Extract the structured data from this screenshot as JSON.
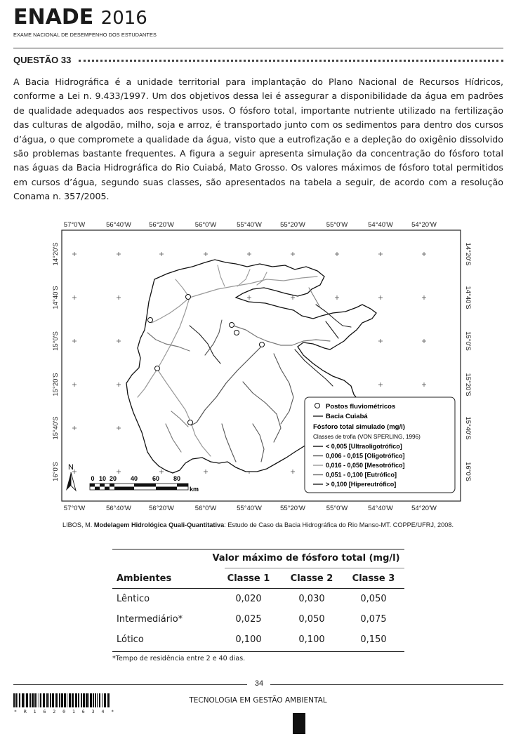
{
  "header": {
    "logo_main": "ENADE",
    "logo_year": "2016",
    "logo_subtitle": "EXAME NACIONAL DE DESEMPENHO DOS ESTUDANTES"
  },
  "question": {
    "title": "QUESTÃO 33",
    "paragraph": "A Bacia Hidrográfica é a unidade territorial para implantação do Plano Nacional de Recursos Hídricos, conforme a Lei n. 9.433/1997. Um dos objetivos dessa lei é assegurar a disponibilidade da água em padrões de qualidade adequados aos respectivos usos. O fósforo total, importante nutriente utilizado na fertilização das culturas de algodão, milho, soja e arroz, é transportado junto com os sedimentos para dentro dos cursos d’água, o que compromete a qualidade da água, visto que a eutrofização e a depleção do oxigênio dissolvido são problemas bastante frequentes. A figura a seguir apresenta simulação da concentração do fósforo total nas águas da Bacia Hidrográfica do Rio Cuiabá, Mato Grosso. Os valores máximos de fósforo total permitidos em cursos d’água, segundo suas classes, são apresentados na tabela a seguir, de acordo com a resolução Conama n. 357/2005."
  },
  "map": {
    "lon_labels": [
      "57°0'W",
      "56°40'W",
      "56°20'W",
      "56°0'W",
      "55°40'W",
      "55°20'W",
      "55°0'W",
      "54°40'W",
      "54°20'W"
    ],
    "lat_labels": [
      "14°20'S",
      "14°40'S",
      "15°0'S",
      "15°20'S",
      "15°40'S",
      "16°0'S"
    ],
    "north_label": "N",
    "scale_labels": [
      "0",
      "10",
      "20",
      "40",
      "60",
      "80"
    ],
    "scale_unit": "km",
    "legend": {
      "stations": "Postos fluviométricos",
      "basin": "Bacia Cuiabá",
      "title": "Fósforo total simulado (mg/l)",
      "subtitle": "Classes de trofia (VON SPERLING, 1996)",
      "classes": [
        {
          "label": "< 0,005 [Ultraoligotrófico]",
          "color": "#111111"
        },
        {
          "label": "0,006 - 0,015 [Oligotrófico]",
          "color": "#555555"
        },
        {
          "label": "0,016 - 0,050 [Mesotrófico]",
          "color": "#999999"
        },
        {
          "label": "0,051 - 0,100 [Eutrófico]",
          "color": "#6e6e6e"
        },
        {
          "label": "> 0,100 [Hipereutrófico]",
          "color": "#222222"
        }
      ]
    }
  },
  "caption": {
    "author": "LIBOS, M. ",
    "title": "Modelagem Hidrológica Quali-Quantitativa",
    "rest": ": Estudo de Caso da Bacia Hidrográfica do Rio Manso-MT. COPPE/UFRJ, 2008."
  },
  "table": {
    "group_header": "Valor máximo de fósforo total (mg/l)",
    "col_ambientes": "Ambientes",
    "classes": [
      "Classe 1",
      "Classe 2",
      "Classe 3"
    ],
    "rows": [
      {
        "name": "Lêntico",
        "values": [
          "0,020",
          "0,030",
          "0,050"
        ]
      },
      {
        "name": "Intermediário*",
        "values": [
          "0,025",
          "0,050",
          "0,075"
        ]
      },
      {
        "name": "Lótico",
        "values": [
          "0,100",
          "0,100",
          "0,150"
        ]
      }
    ],
    "footnote": "*Tempo de residência entre 2 e 40 dias."
  },
  "footer": {
    "page_number": "34",
    "course": "TECNOLOGIA EM GESTÃO AMBIENTAL",
    "barcode_text": "* R 1 6 2 0 1 6 3 4 *"
  }
}
